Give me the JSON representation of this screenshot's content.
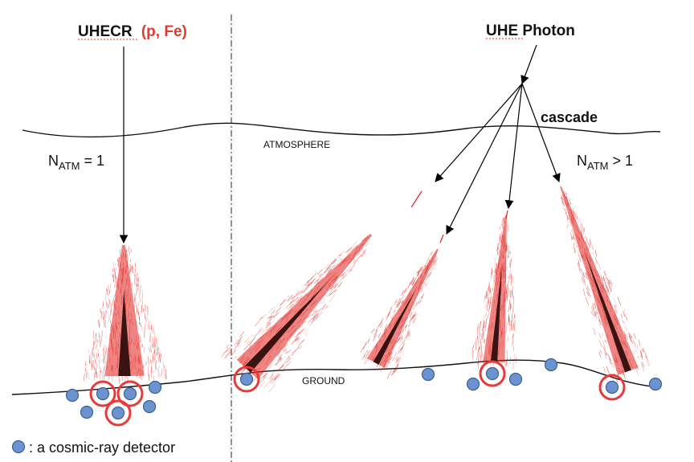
{
  "left_panel": {
    "title_main": "UHECR",
    "title_particles": "(p, Fe)",
    "n_atm_base": "N",
    "n_atm_sub": "ATM",
    "n_atm_rel": " = 1"
  },
  "right_panel": {
    "title": "UHE Photon",
    "cascade_label": "cascade",
    "n_atm_base": "N",
    "n_atm_sub": "ATM",
    "n_atm_rel": " > 1"
  },
  "labels": {
    "atmosphere": "ATMOSPHERE",
    "ground": "GROUND"
  },
  "legend": {
    "text": ": a cosmic-ray detector"
  },
  "colors": {
    "shower_red": "#e0201c",
    "shower_core": "#1a0000",
    "detector_fill": "#6a93cf",
    "detector_stroke": "#3d5f96",
    "hit_ring": "#e83a3a",
    "title_red": "#e23b2e"
  }
}
